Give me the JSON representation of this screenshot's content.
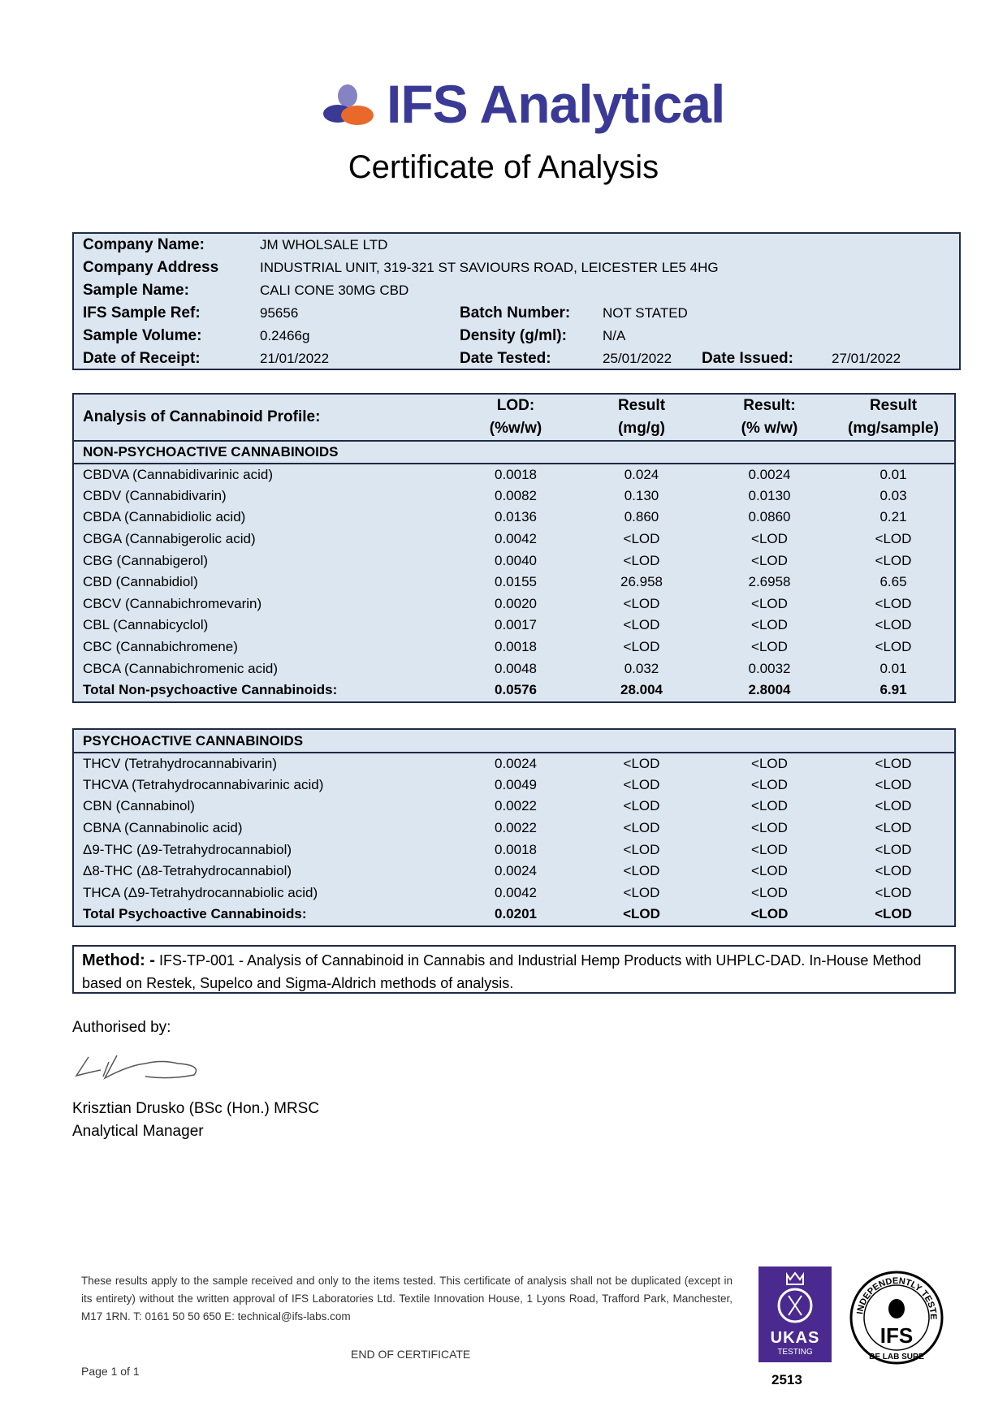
{
  "header": {
    "brand": "IFS Analytical",
    "title": "Certificate of Analysis",
    "brand_color": "#3a3a96",
    "accent_color": "#e8692a"
  },
  "info": {
    "company_name_label": "Company Name:",
    "company_name": "JM WHOLSALE LTD",
    "company_address_label": "Company Address",
    "company_address": "INDUSTRIAL UNIT, 319-321 ST SAVIOURS ROAD, LEICESTER LE5 4HG",
    "sample_name_label": "Sample Name:",
    "sample_name": "CALI CONE 30MG CBD",
    "sample_ref_label": "IFS Sample Ref:",
    "sample_ref": "95656",
    "batch_label": "Batch Number:",
    "batch": "NOT STATED",
    "volume_label": "Sample Volume:",
    "volume": "0.2466g",
    "density_label": "Density (g/ml):",
    "density": "N/A",
    "receipt_label": "Date of Receipt:",
    "receipt": "21/01/2022",
    "tested_label": "Date Tested:",
    "tested": "25/01/2022",
    "issued_label": "Date Issued:",
    "issued": "27/01/2022"
  },
  "analysis": {
    "title": "Analysis of Cannabinoid Profile:",
    "columns": [
      [
        "LOD:",
        "(%w/w)"
      ],
      [
        "Result",
        "(mg/g)"
      ],
      [
        "Result:",
        "(% w/w)"
      ],
      [
        "Result",
        "(mg/sample)"
      ]
    ],
    "non_psychoactive": {
      "heading": "NON-PSYCHOACTIVE CANNABINOIDS",
      "rows": [
        [
          "CBDVA (Cannabidivarinic acid)",
          "0.0018",
          "0.024",
          "0.0024",
          "0.01"
        ],
        [
          "CBDV (Cannabidivarin)",
          "0.0082",
          "0.130",
          "0.0130",
          "0.03"
        ],
        [
          "CBDA (Cannabidiolic acid)",
          "0.0136",
          "0.860",
          "0.0860",
          "0.21"
        ],
        [
          "CBGA (Cannabigerolic acid)",
          "0.0042",
          "<LOD",
          "<LOD",
          "<LOD"
        ],
        [
          "CBG (Cannabigerol)",
          "0.0040",
          "<LOD",
          "<LOD",
          "<LOD"
        ],
        [
          "CBD (Cannabidiol)",
          "0.0155",
          "26.958",
          "2.6958",
          "6.65"
        ],
        [
          "CBCV (Cannabichromevarin)",
          "0.0020",
          "<LOD",
          "<LOD",
          "<LOD"
        ],
        [
          "CBL (Cannabicyclol)",
          "0.0017",
          "<LOD",
          "<LOD",
          "<LOD"
        ],
        [
          "CBC (Cannabichromene)",
          "0.0018",
          "<LOD",
          "<LOD",
          "<LOD"
        ],
        [
          "CBCA (Cannabichromenic acid)",
          "0.0048",
          "0.032",
          "0.0032",
          "0.01"
        ]
      ],
      "total": [
        "Total Non-psychoactive Cannabinoids:",
        "0.0576",
        "28.004",
        "2.8004",
        "6.91"
      ]
    },
    "psychoactive": {
      "heading": "PSYCHOACTIVE CANNABINOIDS",
      "rows": [
        [
          "THCV (Tetrahydrocannabivarin)",
          "0.0024",
          "<LOD",
          "<LOD",
          "<LOD"
        ],
        [
          "THCVA (Tetrahydrocannabivarinic acid)",
          "0.0049",
          "<LOD",
          "<LOD",
          "<LOD"
        ],
        [
          "CBN (Cannabinol)",
          "0.0022",
          "<LOD",
          "<LOD",
          "<LOD"
        ],
        [
          "CBNA (Cannabinolic acid)",
          "0.0022",
          "<LOD",
          "<LOD",
          "<LOD"
        ],
        [
          "Δ9-THC (Δ9-Tetrahydrocannabiol)",
          "0.0018",
          "<LOD",
          "<LOD",
          "<LOD"
        ],
        [
          "Δ8-THC (Δ8-Tetrahydrocannabiol)",
          "0.0024",
          "<LOD",
          "<LOD",
          "<LOD"
        ],
        [
          "THCA (Δ9-Tetrahydrocannabiolic acid)",
          "0.0042",
          "<LOD",
          "<LOD",
          "<LOD"
        ]
      ],
      "total": [
        "Total Psychoactive Cannabinoids:",
        "0.0201",
        "<LOD",
        "<LOD",
        "<LOD"
      ]
    }
  },
  "method": {
    "label": "Method: -",
    "text": " IFS-TP-001 - Analysis of Cannabinoid in Cannabis and Industrial Hemp Products with UHPLC-DAD. In-House Method based on Restek, Supelco and Sigma-Aldrich methods of analysis."
  },
  "authorisation": {
    "label": "Authorised by:",
    "name": "Krisztian Drusko (BSc (Hon.) MRSC",
    "role": "Analytical Manager"
  },
  "footer": {
    "disclaimer": "These results apply to the sample received and only to the items tested. This certificate of analysis shall not be duplicated (except in its entirety) without the written approval of IFS Laboratories Ltd. Textile Innovation House, 1 Lyons Road, Trafford Park, Manchester, M17 1RN. T: 0161 50 50 650 E: ",
    "email": "technical@ifs-labs.com",
    "end": "END OF CERTIFICATE",
    "page": "Page 1 of 1",
    "ukas": {
      "name": "UKAS",
      "sub": "TESTING",
      "number": "2513",
      "color": "#4b2a8f"
    },
    "seal": {
      "top": "INDEPENDENTLY TESTED",
      "mid": "IFS",
      "bottom": "BE LAB SURE"
    }
  }
}
